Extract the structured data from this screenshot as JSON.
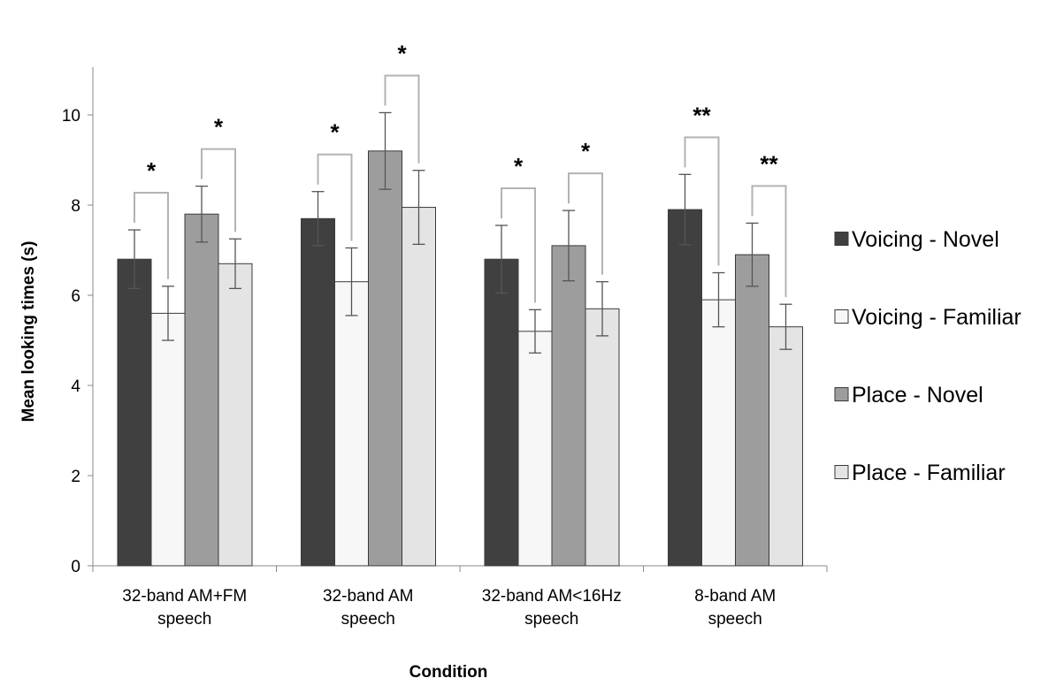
{
  "chart_data": {
    "type": "bar",
    "title": "",
    "xlabel": "Condition",
    "ylabel": "Mean looking times (s)",
    "ylim": [
      0,
      11
    ],
    "yticks": [
      0,
      2,
      4,
      6,
      8,
      10
    ],
    "grid": false,
    "legend_position": "right",
    "categories": [
      [
        "32-band AM+FM",
        "speech"
      ],
      [
        "32-band AM",
        "speech"
      ],
      [
        "32-band AM<16Hz",
        "speech"
      ],
      [
        "8-band AM",
        "speech"
      ]
    ],
    "series": [
      {
        "name": "Voicing - Novel",
        "color": "#404040",
        "values": [
          6.8,
          7.7,
          6.8,
          7.9
        ],
        "error": [
          0.65,
          0.6,
          0.75,
          0.78
        ]
      },
      {
        "name": "Voicing - Familiar",
        "color": "#f7f7f7",
        "values": [
          5.6,
          6.3,
          5.2,
          5.9
        ],
        "error": [
          0.6,
          0.75,
          0.48,
          0.6
        ]
      },
      {
        "name": "Place - Novel",
        "color": "#9d9d9d",
        "values": [
          7.8,
          9.2,
          7.1,
          6.9
        ],
        "error": [
          0.62,
          0.85,
          0.78,
          0.7
        ]
      },
      {
        "name": "Place - Familiar",
        "color": "#e4e4e4",
        "values": [
          6.7,
          7.95,
          5.7,
          5.3
        ],
        "error": [
          0.55,
          0.82,
          0.6,
          0.5
        ]
      }
    ],
    "significance": [
      {
        "category": 0,
        "pair": "voicing",
        "label": "*"
      },
      {
        "category": 0,
        "pair": "place",
        "label": "*"
      },
      {
        "category": 1,
        "pair": "voicing",
        "label": "*"
      },
      {
        "category": 1,
        "pair": "place",
        "label": "*"
      },
      {
        "category": 2,
        "pair": "voicing",
        "label": "*"
      },
      {
        "category": 2,
        "pair": "place",
        "label": "*"
      },
      {
        "category": 3,
        "pair": "voicing",
        "label": "**"
      },
      {
        "category": 3,
        "pair": "place",
        "label": "**"
      }
    ]
  }
}
